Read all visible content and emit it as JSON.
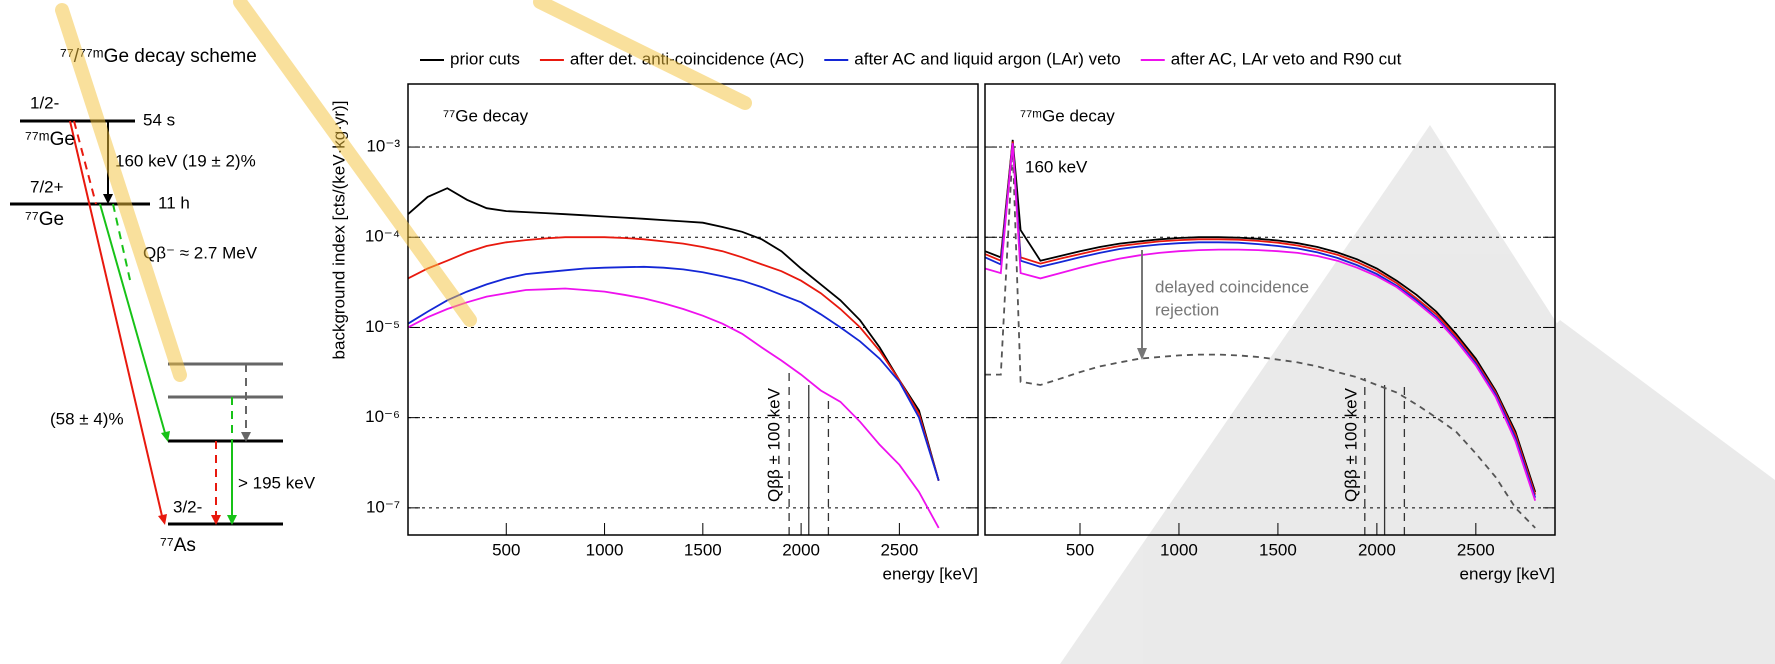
{
  "decay_scheme": {
    "title": "⁷⁷/⁷⁷ᵐGe decay scheme",
    "levels": [
      {
        "spin": "1/2-",
        "nucleus": "⁷⁷ᵐGe",
        "halflife": "54 s"
      },
      {
        "spin": "7/2+",
        "nucleus": "⁷⁷Ge",
        "halflife": "11 h"
      },
      {
        "spin": "3/2-",
        "nucleus": "⁷⁷As"
      }
    ],
    "transition": "160 keV (19 ± 2)%",
    "q_value": "Qβ⁻ ≈ 2.7 MeV",
    "branch": "(58 ± 4)%",
    "gamma": "> 195 keV"
  },
  "chart_data": [
    {
      "type": "line",
      "title": "⁷⁷Ge decay",
      "xlabel": "energy [keV]",
      "ylabel": "background index [cts/(keV·kg·yr)]",
      "log_y": true,
      "grid": true,
      "xlim": [
        0,
        2900
      ],
      "ylim": [
        5e-08,
        0.005
      ],
      "xticks": [
        500,
        1000,
        1500,
        2000,
        2500
      ],
      "yticks": [
        {
          "value": 1e-07,
          "label": "10⁻⁷"
        },
        {
          "value": 1e-06,
          "label": "10⁻⁶"
        },
        {
          "value": 1e-05,
          "label": "10⁻⁵"
        },
        {
          "value": 0.0001,
          "label": "10⁻⁴"
        },
        {
          "value": 0.001,
          "label": "10⁻³"
        }
      ],
      "qbb": {
        "value": 2039,
        "window": 100,
        "label": "Qββ ± 100 keV"
      },
      "x": [
        0,
        100,
        200,
        300,
        400,
        500,
        600,
        700,
        800,
        900,
        1000,
        1100,
        1200,
        1300,
        1400,
        1500,
        1600,
        1700,
        1800,
        1900,
        2000,
        2100,
        2200,
        2300,
        2400,
        2500,
        2600,
        2700,
        2800,
        2900
      ],
      "series": [
        {
          "name": "prior cuts",
          "color": "#000000",
          "values": [
            0.00018,
            0.00028,
            0.00035,
            0.00026,
            0.00021,
            0.000195,
            0.00019,
            0.000185,
            0.00018,
            0.000175,
            0.00017,
            0.000165,
            0.00016,
            0.000155,
            0.00015,
            0.000145,
            0.00013,
            0.000115,
            9.5e-05,
            7e-05,
            4.5e-05,
            3e-05,
            2e-05,
            1.2e-05,
            6e-06,
            2.6e-06,
            1.2e-06,
            2e-07,
            null,
            null
          ]
        },
        {
          "name": "after det. anti-coincidence (AC)",
          "color": "#e8190e",
          "values": [
            3.5e-05,
            4.5e-05,
            5.5e-05,
            6.8e-05,
            8e-05,
            8.8e-05,
            9.3e-05,
            9.7e-05,
            0.0001,
            0.0001,
            0.0001,
            9.8e-05,
            9.5e-05,
            9e-05,
            8.5e-05,
            7.8e-05,
            7e-05,
            6e-05,
            5e-05,
            4.2e-05,
            3.3e-05,
            2.4e-05,
            1.6e-05,
            1e-05,
            5.5e-06,
            2.6e-06,
            1.1e-06,
            2e-07,
            null,
            null
          ]
        },
        {
          "name": "after AC and liquid argon (LAr) veto",
          "color": "#1427d6",
          "values": [
            1.1e-05,
            1.5e-05,
            2e-05,
            2.5e-05,
            3e-05,
            3.5e-05,
            3.9e-05,
            4.1e-05,
            4.3e-05,
            4.5e-05,
            4.6e-05,
            4.65e-05,
            4.7e-05,
            4.6e-05,
            4.4e-05,
            4.1e-05,
            3.7e-05,
            3.3e-05,
            2.8e-05,
            2.3e-05,
            1.9e-05,
            1.4e-05,
            1e-05,
            7e-06,
            4.5e-06,
            2.5e-06,
            1e-06,
            2e-07,
            null,
            null
          ]
        },
        {
          "name": "after AC, LAr veto and R90 cut",
          "color": "#ee11ee",
          "values": [
            1e-05,
            1.3e-05,
            1.6e-05,
            1.9e-05,
            2.2e-05,
            2.4e-05,
            2.6e-05,
            2.65e-05,
            2.7e-05,
            2.6e-05,
            2.5e-05,
            2.3e-05,
            2.1e-05,
            1.85e-05,
            1.6e-05,
            1.35e-05,
            1.1e-05,
            8.5e-06,
            6e-06,
            4.3e-06,
            3e-06,
            2e-06,
            1.5e-06,
            9e-07,
            5e-07,
            3e-07,
            1.5e-07,
            6e-08,
            null,
            null
          ]
        }
      ]
    },
    {
      "type": "line",
      "title": "⁷⁷ᵐGe decay",
      "xlabel": "energy [keV]",
      "annotations": [
        "160 keV",
        "delayed coincidence",
        "rejection"
      ],
      "log_y": true,
      "grid": true,
      "ytick_labels": false,
      "xlim": [
        20,
        2900
      ],
      "ylim": [
        5e-08,
        0.005
      ],
      "xticks": [
        500,
        1000,
        1500,
        2000,
        2500
      ],
      "yticks": [
        1e-07,
        1e-06,
        1e-05,
        0.0001,
        0.001
      ],
      "qbb": {
        "value": 2039,
        "window": 100,
        "label": "Qββ ± 100 keV"
      },
      "x": [
        20,
        100,
        160,
        200,
        300,
        400,
        500,
        600,
        700,
        800,
        900,
        1000,
        1100,
        1200,
        1300,
        1400,
        1500,
        1600,
        1700,
        1800,
        1900,
        2000,
        2100,
        2200,
        2300,
        2400,
        2500,
        2600,
        2700,
        2800,
        2900
      ],
      "series": [
        {
          "color": "#000000",
          "values": [
            7e-05,
            6e-05,
            0.0012,
            0.00012,
            5.5e-05,
            6.2e-05,
            7e-05,
            7.8e-05,
            8.5e-05,
            9e-05,
            9.5e-05,
            9.8e-05,
            0.0001,
            0.0001,
            9.9e-05,
            9.6e-05,
            9.2e-05,
            8.6e-05,
            7.8e-05,
            6.8e-05,
            5.7e-05,
            4.5e-05,
            3.3e-05,
            2.3e-05,
            1.5e-05,
            8.5e-06,
            4.5e-06,
            2e-06,
            7e-07,
            1.5e-07,
            null
          ]
        },
        {
          "color": "#e8190e",
          "values": [
            6.5e-05,
            5.5e-05,
            0.00115,
            6e-05,
            5.1e-05,
            5.8e-05,
            6.5e-05,
            7.3e-05,
            8e-05,
            8.5e-05,
            9e-05,
            9.3e-05,
            9.5e-05,
            9.5e-05,
            9.4e-05,
            9.1e-05,
            8.7e-05,
            8.1e-05,
            7.3e-05,
            6.4e-05,
            5.3e-05,
            4.2e-05,
            3.1e-05,
            2.1e-05,
            1.4e-05,
            8e-06,
            4.2e-06,
            1.9e-06,
            6.5e-07,
            1.4e-07,
            null
          ]
        },
        {
          "color": "#1427d6",
          "values": [
            6e-05,
            5e-05,
            0.0011,
            5.5e-05,
            4.7e-05,
            5.3e-05,
            6e-05,
            6.7e-05,
            7.4e-05,
            7.9e-05,
            8.3e-05,
            8.6e-05,
            8.8e-05,
            8.8e-05,
            8.7e-05,
            8.4e-05,
            8e-05,
            7.5e-05,
            6.8e-05,
            5.9e-05,
            4.9e-05,
            3.9e-05,
            2.9e-05,
            2e-05,
            1.3e-05,
            7.5e-06,
            4e-06,
            1.8e-06,
            6e-07,
            1.3e-07,
            null
          ]
        },
        {
          "color": "#ee11ee",
          "values": [
            4.5e-05,
            4e-05,
            0.0011,
            4e-05,
            3.5e-05,
            4e-05,
            4.6e-05,
            5.2e-05,
            5.8e-05,
            6.3e-05,
            6.7e-05,
            7e-05,
            7.2e-05,
            7.3e-05,
            7.3e-05,
            7.2e-05,
            7e-05,
            6.7e-05,
            6.2e-05,
            5.5e-05,
            4.6e-05,
            3.7e-05,
            2.8e-05,
            1.9e-05,
            1.25e-05,
            7.2e-06,
            3.8e-06,
            1.7e-06,
            5.5e-07,
            1.2e-07,
            null
          ]
        }
      ],
      "rejected": {
        "color": "#555555",
        "values": [
          3e-06,
          3e-06,
          0.001,
          2.5e-06,
          2.3e-06,
          2.7e-06,
          3.2e-06,
          3.7e-06,
          4.1e-06,
          4.5e-06,
          4.7e-06,
          4.9e-06,
          5e-06,
          5e-06,
          4.9e-06,
          4.7e-06,
          4.4e-06,
          4.1e-06,
          3.7e-06,
          3.2e-06,
          2.8e-06,
          2.3e-06,
          1.9e-06,
          1.4e-06,
          1e-06,
          7e-07,
          4e-07,
          2.2e-07,
          1e-07,
          6e-08,
          null
        ]
      }
    }
  ]
}
